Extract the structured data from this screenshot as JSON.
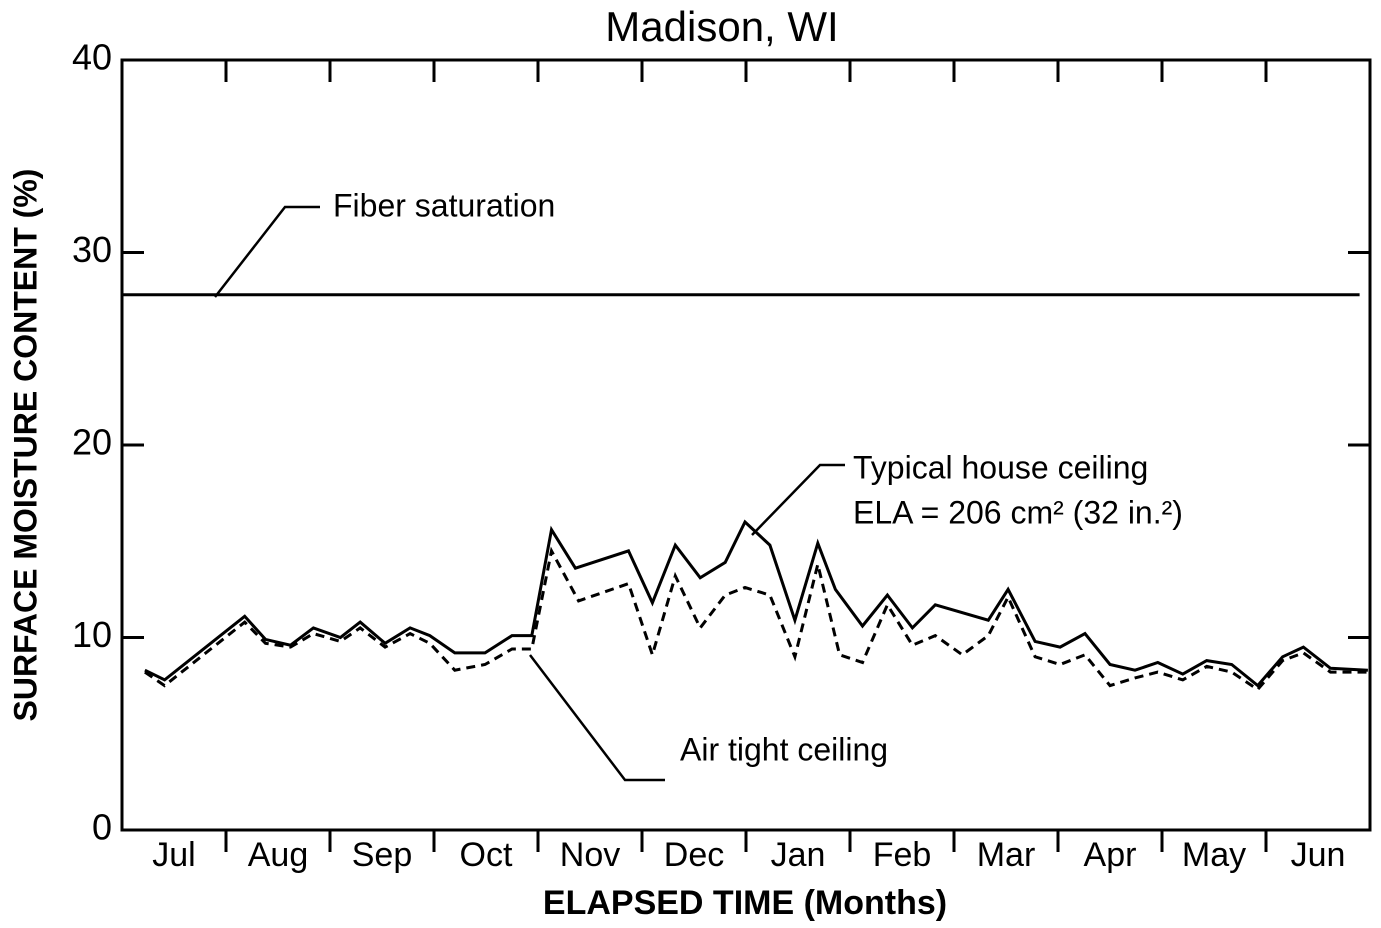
{
  "chart_data": {
    "type": "line",
    "title": "Madison, WI",
    "x_label": "ELAPSED TIME (Months)",
    "y_label": "SURFACE MOISTURE CONTENT (%)",
    "categories": [
      "Jul",
      "Aug",
      "Sep",
      "Oct",
      "Nov",
      "Dec",
      "Jan",
      "Feb",
      "Mar",
      "Apr",
      "May",
      "Jun"
    ],
    "xlim": [
      0,
      12
    ],
    "xticks": [
      1,
      2,
      3,
      4,
      5,
      6,
      7,
      8,
      9,
      10,
      11
    ],
    "ylim": [
      0,
      40
    ],
    "yticks": [
      0,
      10,
      20,
      30,
      40
    ],
    "series": [
      {
        "name": "Typical house ceiling",
        "color": "#000",
        "dash": false,
        "x": [
          0.22,
          0.41,
          1.18,
          1.38,
          1.62,
          1.84,
          2.1,
          2.29,
          2.53,
          2.77,
          2.96,
          3.2,
          3.49,
          3.75,
          3.94,
          4.13,
          4.36,
          4.87,
          5.1,
          5.32,
          5.56,
          5.8,
          5.99,
          6.23,
          6.47,
          6.69,
          6.86,
          7.12,
          7.36,
          7.6,
          7.82,
          8.33,
          8.52,
          8.78,
          9.02,
          9.26,
          9.5,
          9.74,
          9.96,
          10.2,
          10.43,
          10.67,
          10.92,
          11.16,
          11.36,
          11.62,
          11.98
        ],
        "values": [
          8.3,
          7.8,
          11.1,
          9.9,
          9.6,
          10.5,
          10.0,
          10.8,
          9.7,
          10.5,
          10.1,
          9.2,
          9.2,
          10.1,
          10.1,
          15.6,
          13.6,
          14.5,
          11.8,
          14.8,
          13.1,
          13.9,
          16.0,
          14.8,
          10.9,
          14.9,
          12.5,
          10.6,
          12.2,
          10.5,
          11.7,
          10.9,
          12.5,
          9.8,
          9.5,
          10.2,
          8.6,
          8.3,
          8.7,
          8.1,
          8.8,
          8.6,
          7.5,
          9.0,
          9.5,
          8.4,
          8.3
        ]
      },
      {
        "name": "Air tight ceiling",
        "color": "#000",
        "dash": true,
        "x": [
          0.22,
          0.41,
          1.18,
          1.38,
          1.62,
          1.84,
          2.1,
          2.29,
          2.53,
          2.77,
          2.96,
          3.2,
          3.49,
          3.75,
          3.94,
          4.13,
          4.39,
          4.87,
          5.1,
          5.32,
          5.56,
          5.8,
          5.99,
          6.23,
          6.47,
          6.69,
          6.9,
          7.12,
          7.36,
          7.6,
          7.82,
          8.08,
          8.33,
          8.52,
          8.78,
          9.02,
          9.26,
          9.5,
          9.74,
          9.96,
          10.2,
          10.43,
          10.67,
          10.92,
          11.16,
          11.36,
          11.62,
          11.98
        ],
        "values": [
          8.2,
          7.5,
          10.8,
          9.7,
          9.5,
          10.2,
          9.8,
          10.5,
          9.5,
          10.2,
          9.7,
          8.3,
          8.6,
          9.4,
          9.4,
          14.5,
          11.9,
          12.8,
          9.1,
          13.2,
          10.5,
          12.2,
          12.6,
          12.2,
          9.0,
          13.8,
          9.1,
          8.7,
          11.7,
          9.6,
          10.1,
          9.1,
          10.1,
          12.1,
          9.0,
          8.6,
          9.1,
          7.5,
          7.9,
          8.2,
          7.8,
          8.5,
          8.2,
          7.3,
          8.8,
          9.2,
          8.2,
          8.2
        ]
      },
      {
        "name": "Fiber saturation",
        "color": "#000",
        "dash": false,
        "x": [
          0,
          11.9
        ],
        "values": [
          27.8,
          27.8
        ]
      }
    ],
    "annotations": [
      "Fiber saturation",
      "Typical house ceiling",
      "ELA = 206 cm² (32 in.²)",
      "Air tight ceiling"
    ]
  }
}
